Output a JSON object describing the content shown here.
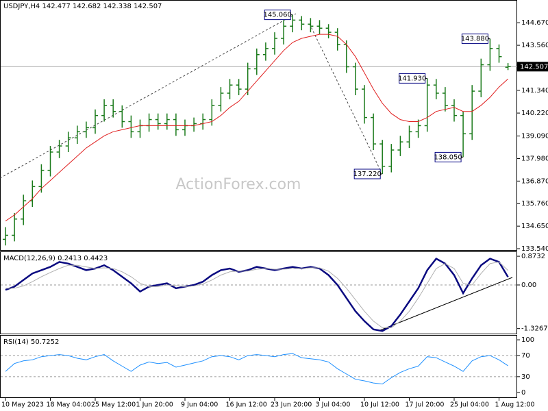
{
  "chart_data": [
    {
      "type": "candlestick",
      "title": "USDJPY,H4  142.477 142.682 142.338 142.507",
      "watermark": "ActionForex.com",
      "categories": [
        "10 May 2023",
        null,
        null,
        null,
        null,
        "18 May 04:00",
        null,
        null,
        null,
        null,
        "25 May 12:00",
        null,
        null,
        null,
        null,
        "1 Jun 20:00",
        null,
        null,
        null,
        null,
        "9 Jun 04:00",
        null,
        null,
        null,
        null,
        "16 Jun 12:00",
        null,
        null,
        null,
        null,
        "23 Jun 20:00",
        null,
        null,
        null,
        null,
        "3 Jul 04:00",
        null,
        null,
        null,
        null,
        "10 Jul 12:00",
        null,
        null,
        null,
        null,
        "17 Jul 20:00",
        null,
        null,
        null,
        null,
        "25 Jul 04:00",
        null,
        null,
        null,
        null,
        "1 Aug 12:00",
        null
      ],
      "open": [
        134.0,
        134.2,
        135.0,
        135.9,
        136.6,
        137.4,
        138.3,
        138.6,
        139.0,
        139.3,
        139.5,
        140.1,
        140.6,
        140.3,
        139.8,
        139.3,
        139.6,
        139.9,
        139.7,
        139.9,
        139.4,
        139.6,
        139.7,
        139.9,
        140.6,
        141.2,
        141.6,
        141.4,
        142.4,
        143.1,
        143.4,
        143.9,
        144.5,
        144.8,
        144.6,
        144.5,
        144.4,
        144.2,
        143.6,
        142.5,
        141.4,
        140.0,
        138.7,
        137.6,
        138.4,
        138.8,
        139.3,
        139.6,
        141.6,
        141.2,
        140.6,
        140.1,
        139.2,
        141.3,
        142.6,
        143.4,
        142.477
      ],
      "high": [
        134.6,
        135.3,
        136.2,
        136.9,
        137.7,
        138.6,
        138.9,
        139.3,
        139.6,
        139.8,
        140.4,
        140.9,
        140.9,
        140.6,
        140.1,
        139.9,
        140.2,
        140.2,
        140.2,
        140.2,
        139.9,
        140.0,
        140.2,
        140.9,
        141.5,
        141.9,
        141.9,
        142.7,
        143.4,
        143.7,
        144.2,
        144.8,
        145.06,
        145.0,
        144.9,
        144.8,
        144.6,
        144.4,
        143.8,
        142.7,
        141.6,
        140.2,
        138.9,
        138.7,
        139.1,
        139.6,
        139.9,
        141.93,
        141.9,
        141.5,
        140.9,
        140.3,
        141.6,
        142.9,
        143.88,
        143.6,
        142.682
      ],
      "low": [
        133.7,
        133.9,
        134.7,
        135.6,
        136.3,
        137.1,
        138.0,
        138.3,
        138.7,
        139.0,
        139.2,
        139.8,
        140.0,
        139.5,
        139.0,
        139.0,
        139.3,
        139.4,
        139.4,
        139.1,
        139.1,
        139.3,
        139.4,
        139.6,
        140.3,
        140.9,
        141.1,
        141.1,
        142.1,
        142.8,
        143.1,
        143.6,
        144.2,
        144.3,
        144.2,
        144.1,
        143.9,
        143.3,
        142.2,
        141.1,
        139.7,
        138.4,
        137.22,
        137.3,
        138.1,
        138.5,
        139.0,
        139.3,
        140.9,
        140.3,
        139.8,
        138.05,
        138.9,
        141.0,
        142.3,
        142.7,
        142.338
      ],
      "close": [
        134.2,
        135.0,
        135.9,
        136.6,
        137.4,
        138.3,
        138.6,
        139.0,
        139.3,
        139.5,
        140.1,
        140.6,
        140.3,
        139.8,
        139.3,
        139.6,
        139.9,
        139.7,
        139.9,
        139.4,
        139.6,
        139.7,
        139.9,
        140.6,
        141.2,
        141.6,
        141.4,
        142.4,
        143.1,
        143.4,
        143.9,
        144.5,
        144.8,
        144.6,
        144.5,
        144.4,
        144.2,
        143.6,
        142.5,
        141.4,
        140.0,
        138.7,
        137.6,
        138.4,
        138.8,
        139.3,
        139.6,
        141.6,
        141.2,
        140.6,
        140.1,
        139.2,
        141.3,
        142.6,
        143.4,
        143.0,
        142.507
      ],
      "candle_color": "#1a7a1a",
      "series": [
        {
          "color": "#e02020",
          "values": [
            134.9,
            135.2,
            135.6,
            136.0,
            136.5,
            136.9,
            137.3,
            137.7,
            138.1,
            138.5,
            138.8,
            139.1,
            139.3,
            139.4,
            139.5,
            139.6,
            139.6,
            139.6,
            139.6,
            139.6,
            139.6,
            139.6,
            139.7,
            139.8,
            140.1,
            140.5,
            140.8,
            141.3,
            141.8,
            142.3,
            142.8,
            143.3,
            143.7,
            143.9,
            144.0,
            144.1,
            144.1,
            144.0,
            143.6,
            143.0,
            142.2,
            141.4,
            140.7,
            140.2,
            139.9,
            139.8,
            139.8,
            140.0,
            140.3,
            140.4,
            140.5,
            140.3,
            140.3,
            140.6,
            141.0,
            141.5,
            141.9
          ]
        }
      ],
      "last_price": 142.507,
      "annotations": [
        {
          "label": "145.060",
          "value": 145.06,
          "bar": 32
        },
        {
          "label": "137.220",
          "value": 137.22,
          "bar": 42
        },
        {
          "label": "141.930",
          "value": 141.93,
          "bar": 47
        },
        {
          "label": "138.050",
          "value": 138.05,
          "bar": 51
        },
        {
          "label": "143.880",
          "value": 143.88,
          "bar": 54
        }
      ],
      "ylim": [
        133.44,
        145.79
      ],
      "yticks": [
        {
          "value": 144.67,
          "label": "144.670"
        },
        {
          "value": 143.56,
          "label": "143.560"
        },
        {
          "value": 141.34,
          "label": "141.340"
        },
        {
          "value": 140.22,
          "label": "140.220"
        },
        {
          "value": 139.09,
          "label": "139.090"
        },
        {
          "value": 137.98,
          "label": "137.980"
        },
        {
          "value": 136.87,
          "label": "136.870"
        },
        {
          "value": 135.76,
          "label": "135.760"
        },
        {
          "value": 134.65,
          "label": "134.650"
        },
        {
          "value": 133.54,
          "label": "133.540"
        }
      ]
    },
    {
      "type": "line",
      "title": "MACD(12,26,9) 0.2413 0.4423",
      "series": [
        {
          "color": "#0a0a80",
          "width": 2.5,
          "values": [
            -0.15,
            -0.05,
            0.15,
            0.35,
            0.45,
            0.55,
            0.7,
            0.65,
            0.55,
            0.45,
            0.5,
            0.6,
            0.45,
            0.25,
            0.05,
            -0.2,
            -0.05,
            0.0,
            0.05,
            -0.1,
            -0.05,
            0.0,
            0.1,
            0.3,
            0.45,
            0.5,
            0.4,
            0.45,
            0.55,
            0.5,
            0.45,
            0.5,
            0.55,
            0.5,
            0.55,
            0.5,
            0.3,
            0.0,
            -0.4,
            -0.8,
            -1.1,
            -1.35,
            -1.4,
            -1.25,
            -0.9,
            -0.5,
            -0.1,
            0.45,
            0.8,
            0.65,
            0.3,
            -0.25,
            0.2,
            0.6,
            0.8,
            0.7,
            0.2413
          ]
        },
        {
          "color": "#b0b0b0",
          "width": 1,
          "values": [
            -0.1,
            -0.1,
            -0.03,
            0.1,
            0.25,
            0.38,
            0.5,
            0.6,
            0.6,
            0.55,
            0.5,
            0.52,
            0.5,
            0.4,
            0.25,
            0.05,
            -0.05,
            -0.05,
            0.0,
            -0.02,
            -0.05,
            -0.03,
            0.03,
            0.15,
            0.3,
            0.4,
            0.42,
            0.42,
            0.48,
            0.5,
            0.48,
            0.48,
            0.5,
            0.5,
            0.52,
            0.52,
            0.42,
            0.2,
            -0.1,
            -0.45,
            -0.8,
            -1.1,
            -1.3,
            -1.3,
            -1.1,
            -0.8,
            -0.4,
            0.05,
            0.5,
            0.65,
            0.5,
            0.05,
            0.0,
            0.35,
            0.65,
            0.7,
            0.4423
          ]
        }
      ],
      "ylim": [
        -1.5,
        1.0
      ],
      "yticks": [
        0.8732,
        {
          "value": 0,
          "label": "0.00"
        },
        -1.3267
      ],
      "levels": [
        0
      ]
    },
    {
      "type": "line",
      "title": "RSI(14) 50.7252",
      "series": [
        {
          "color": "#1e90ff",
          "width": 1,
          "values": [
            40,
            55,
            60,
            62,
            68,
            70,
            72,
            70,
            65,
            62,
            68,
            72,
            60,
            50,
            40,
            52,
            58,
            55,
            57,
            48,
            52,
            56,
            60,
            68,
            70,
            68,
            62,
            70,
            72,
            70,
            68,
            72,
            74,
            66,
            64,
            62,
            58,
            45,
            35,
            25,
            22,
            18,
            16,
            28,
            38,
            45,
            50,
            68,
            66,
            58,
            50,
            40,
            60,
            68,
            70,
            62,
            50.7252
          ]
        }
      ],
      "ylim": [
        -10.5,
        107.9
      ],
      "yticks": [
        100,
        70,
        30,
        0
      ],
      "levels": [
        70,
        30
      ]
    }
  ]
}
